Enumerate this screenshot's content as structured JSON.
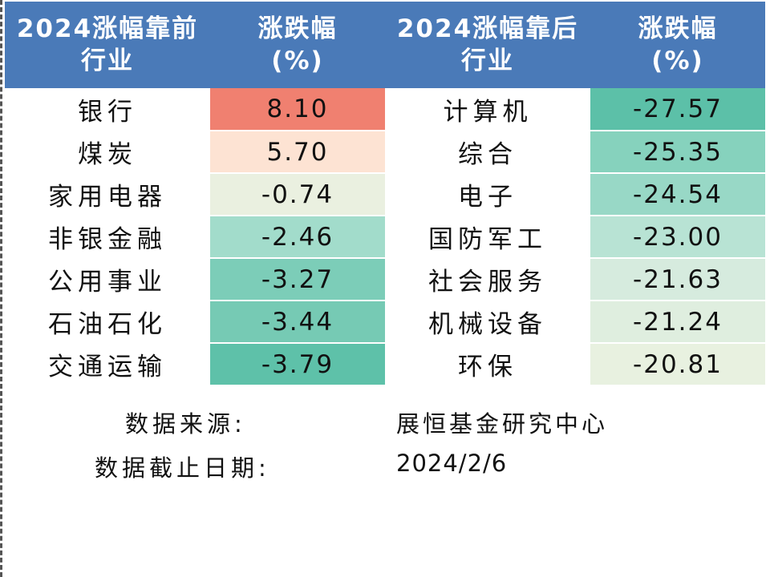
{
  "colors": {
    "header_bg": "#4a7ab8",
    "header_text": "#ffffff",
    "scale_high": "#f08070",
    "scale_mid_pos": "#fde3d3",
    "scale_neutral": "#eaf0e0",
    "scale_low": "#5cc0a8"
  },
  "chart_data": {
    "type": "table",
    "columns": [
      "2024涨幅靠前行业",
      "涨跌幅(%)",
      "2024涨幅靠后行业",
      "涨跌幅(%)"
    ],
    "header": {
      "col1": [
        "2024涨幅靠前",
        "行业"
      ],
      "col2": [
        "涨跌幅",
        "(%)"
      ],
      "col3": [
        "2024涨幅靠后",
        "行业"
      ],
      "col4": [
        "涨跌幅",
        "(%)"
      ]
    },
    "top": [
      {
        "industry": "银行",
        "change": "8.10",
        "color": "#f08070"
      },
      {
        "industry": "煤炭",
        "change": "5.70",
        "color": "#fde3d3"
      },
      {
        "industry": "家用电器",
        "change": "-0.74",
        "color": "#eaf0e0"
      },
      {
        "industry": "非银金融",
        "change": "-2.46",
        "color": "#a2dccb"
      },
      {
        "industry": "公用事业",
        "change": "-3.27",
        "color": "#7ccdb8"
      },
      {
        "industry": "石油石化",
        "change": "-3.44",
        "color": "#76cab4"
      },
      {
        "industry": "交通运输",
        "change": "-3.79",
        "color": "#5ec1a9"
      }
    ],
    "bottom": [
      {
        "industry": "计算机",
        "change": "-27.57",
        "color": "#5cc0a8"
      },
      {
        "industry": "综合",
        "change": "-25.35",
        "color": "#86d2bd"
      },
      {
        "industry": "电子",
        "change": "-24.54",
        "color": "#98d8c6"
      },
      {
        "industry": "国防军工",
        "change": "-23.00",
        "color": "#b8e3d4"
      },
      {
        "industry": "社会服务",
        "change": "-21.63",
        "color": "#d6ebde"
      },
      {
        "industry": "机械设备",
        "change": "-21.24",
        "color": "#dfeedf"
      },
      {
        "industry": "环保",
        "change": "-20.81",
        "color": "#e8f1e0"
      }
    ]
  },
  "footer": {
    "source_label": "数据来源:",
    "source_value": "展恒基金研究中心",
    "date_label": "数据截止日期:",
    "date_value": "2024/2/6"
  }
}
